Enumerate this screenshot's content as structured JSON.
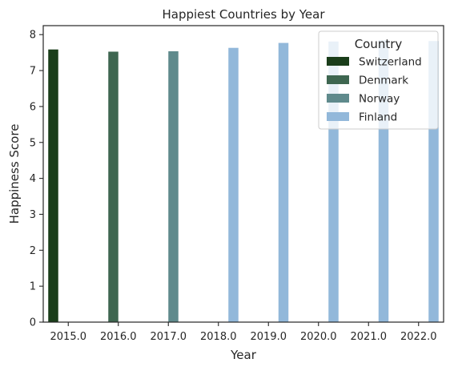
{
  "chart_data": {
    "type": "bar",
    "title": "Happiest Countries by Year",
    "xlabel": "Year",
    "ylabel": "Happiness Score",
    "categories": [
      "2015.0",
      "2016.0",
      "2017.0",
      "2018.0",
      "2019.0",
      "2020.0",
      "2021.0",
      "2022.0"
    ],
    "ylim": [
      0,
      8.25
    ],
    "yticks": [
      "0",
      "1",
      "2",
      "3",
      "4",
      "5",
      "6",
      "7",
      "8"
    ],
    "legend": {
      "title": "Country",
      "placement": "top-right"
    },
    "series": [
      {
        "name": "Switzerland",
        "color": "#1a3d1a",
        "values": [
          7.587,
          null,
          null,
          null,
          null,
          null,
          null,
          null
        ]
      },
      {
        "name": "Denmark",
        "color": "#3e6650",
        "values": [
          null,
          7.526,
          null,
          null,
          null,
          null,
          null,
          null
        ]
      },
      {
        "name": "Norway",
        "color": "#5f8a8c",
        "values": [
          null,
          null,
          7.537,
          null,
          null,
          null,
          null,
          null
        ]
      },
      {
        "name": "Finland",
        "color": "#92b8da",
        "values": [
          null,
          null,
          null,
          7.632,
          7.769,
          7.809,
          7.842,
          7.821
        ]
      }
    ]
  }
}
